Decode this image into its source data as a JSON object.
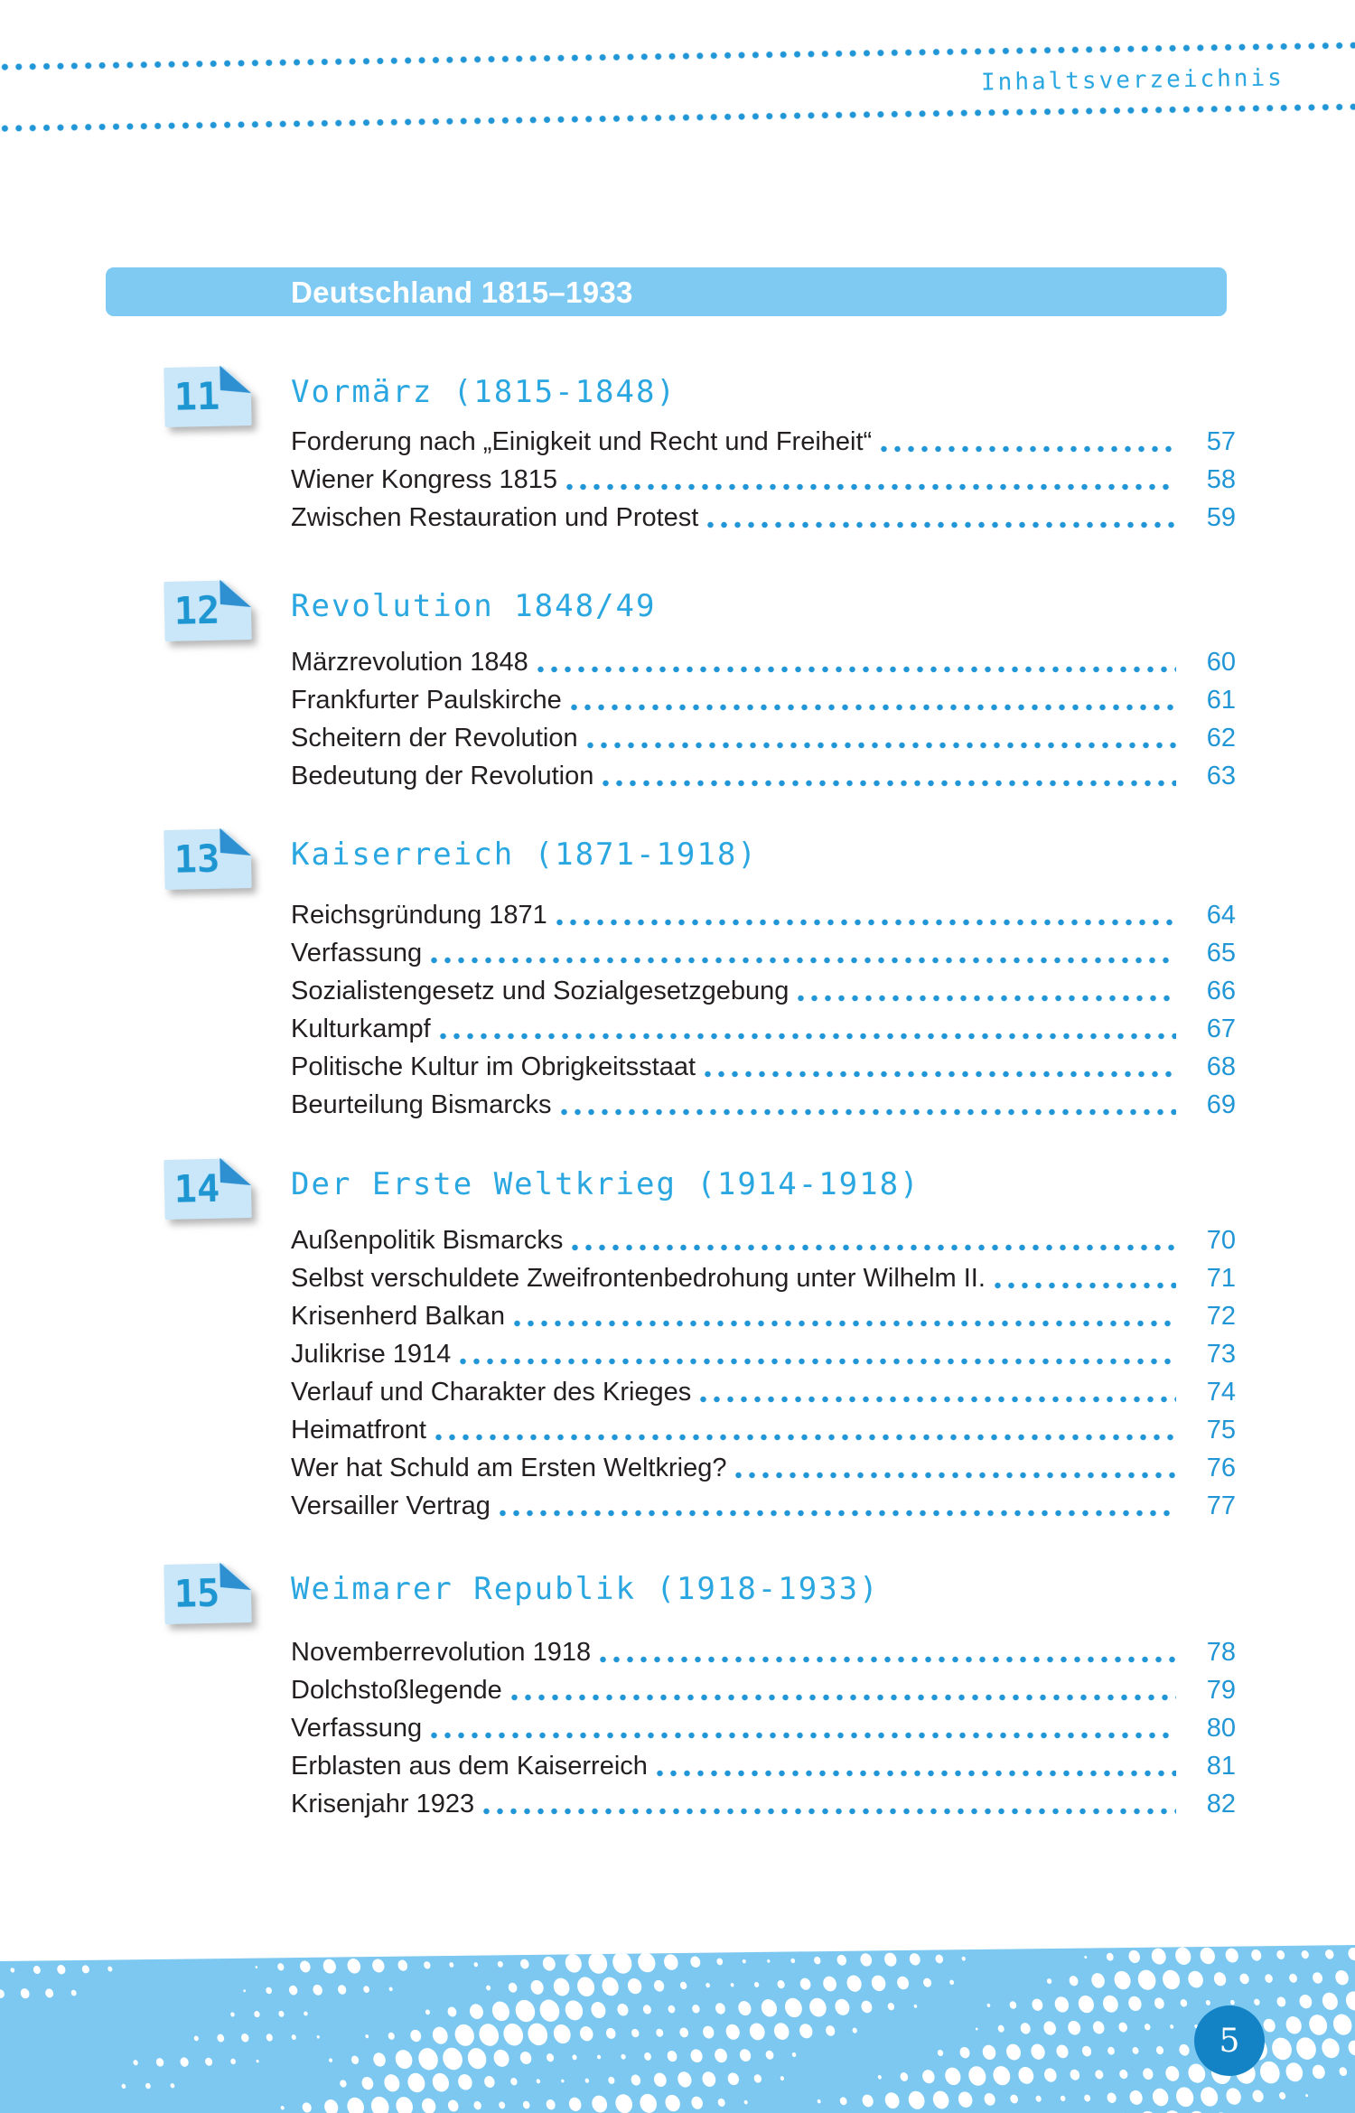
{
  "page": {
    "toc_label": "Inhaltsverzeichnis",
    "page_number": "5"
  },
  "header": {
    "title": "Deutschland 1815–1933"
  },
  "colors": {
    "accent": "#2aa7e0",
    "dot": "#2196d6",
    "header_bar_bg": "#7fcaf3",
    "header_text": "#ffffff",
    "badge_bg": "#c9e7f9",
    "badge_fold": "#2e90d1",
    "badge_number": "#1e96d2",
    "entry_text": "#231f20",
    "page_number": "#2196d6",
    "band_bg": "#7dc8f0",
    "page_badge_bg": "#1483c6"
  },
  "chapters": [
    {
      "number": "11",
      "title": "Vormärz (1815-1848)",
      "entries": [
        {
          "label": "Forderung nach „Einigkeit und Recht und Freiheit“",
          "page": "57"
        },
        {
          "label": "Wiener Kongress 1815",
          "page": "58"
        },
        {
          "label": "Zwischen Restauration und Protest",
          "page": "59"
        }
      ]
    },
    {
      "number": "12",
      "title": "Revolution 1848/49",
      "entries": [
        {
          "label": "Märzrevolution 1848",
          "page": "60"
        },
        {
          "label": "Frankfurter Paulskirche",
          "page": "61"
        },
        {
          "label": "Scheitern der Revolution",
          "page": "62"
        },
        {
          "label": "Bedeutung der Revolution",
          "page": "63"
        }
      ]
    },
    {
      "number": "13",
      "title": "Kaiserreich (1871-1918)",
      "entries": [
        {
          "label": "Reichsgründung 1871",
          "page": "64"
        },
        {
          "label": "Verfassung",
          "page": "65"
        },
        {
          "label": "Sozialistengesetz und Sozialgesetzgebung",
          "page": "66"
        },
        {
          "label": "Kulturkampf",
          "page": "67"
        },
        {
          "label": "Politische Kultur im Obrigkeitsstaat",
          "page": "68"
        },
        {
          "label": "Beurteilung Bismarcks",
          "page": "69"
        }
      ]
    },
    {
      "number": "14",
      "title": "Der Erste Weltkrieg (1914-1918)",
      "entries": [
        {
          "label": "Außenpolitik Bismarcks",
          "page": "70"
        },
        {
          "label": "Selbst verschuldete Zweifrontenbedrohung unter Wilhelm II.",
          "page": "71"
        },
        {
          "label": "Krisenherd Balkan",
          "page": "72"
        },
        {
          "label": "Julikrise 1914",
          "page": "73"
        },
        {
          "label": "Verlauf und Charakter des Krieges",
          "page": "74"
        },
        {
          "label": "Heimatfront",
          "page": "75"
        },
        {
          "label": "Wer hat Schuld am Ersten Weltkrieg?",
          "page": "76"
        },
        {
          "label": "Versailler Vertrag",
          "page": "77"
        }
      ]
    },
    {
      "number": "15",
      "title": "Weimarer Republik (1918-1933)",
      "entries": [
        {
          "label": "Novemberrevolution 1918",
          "page": "78"
        },
        {
          "label": "Dolchstoßlegende",
          "page": "79"
        },
        {
          "label": "Verfassung",
          "page": "80"
        },
        {
          "label": "Erblasten aus dem Kaiserreich",
          "page": "81"
        },
        {
          "label": "Krisenjahr 1923",
          "page": "82"
        }
      ]
    }
  ]
}
